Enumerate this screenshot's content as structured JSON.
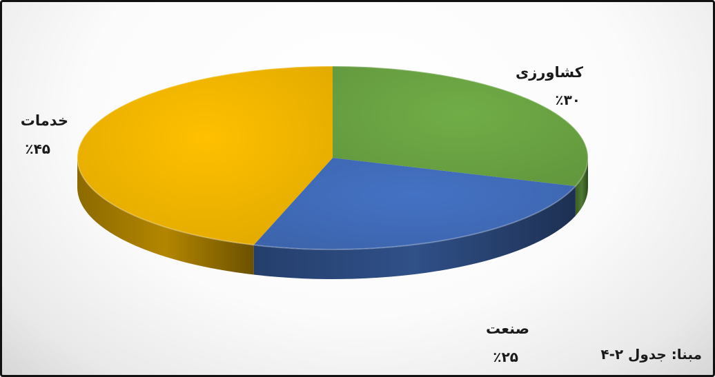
{
  "chart_data": {
    "type": "pie",
    "title": "",
    "slices": [
      {
        "label": "کشاورزی",
        "value": 30,
        "value_label": "٪۳۰",
        "color": "#70AD47"
      },
      {
        "label": "صنعت",
        "value": 25,
        "value_label": "٪۲۵",
        "color": "#4472C4"
      },
      {
        "label": "خدمات",
        "value": 45,
        "value_label": "٪۴۵",
        "color": "#FFC000"
      }
    ],
    "style": "3d",
    "legend": "none"
  },
  "source_note": "مبنا: جدول ۲-۴"
}
